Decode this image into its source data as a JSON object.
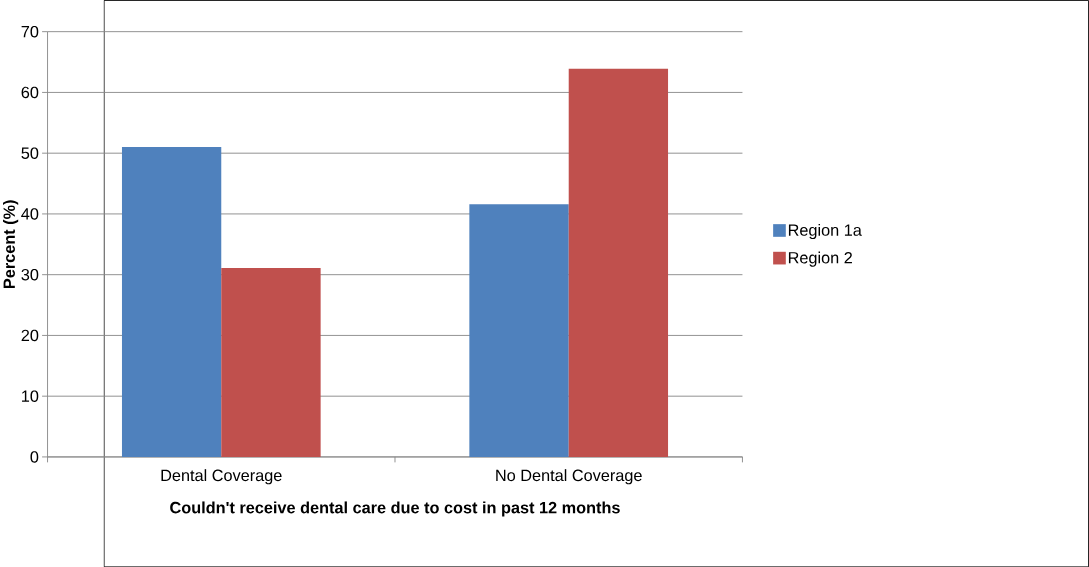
{
  "chart_data": {
    "type": "bar",
    "xlabel": "Couldn't receive dental care due to cost in past 12 months",
    "ylabel": "Percent (%)",
    "categories": [
      "Dental Coverage",
      "No Dental Coverage"
    ],
    "series": [
      {
        "name": "Region 1a",
        "color": "#4f81bd",
        "values": [
          51,
          41.6
        ]
      },
      {
        "name": "Region 2",
        "color": "#c0504d",
        "values": [
          31.1,
          63.9
        ]
      }
    ],
    "ylim": [
      0,
      70
    ],
    "yticks": [
      0,
      10,
      20,
      30,
      40,
      50,
      60,
      70
    ],
    "grid": "y",
    "legend": "right"
  }
}
